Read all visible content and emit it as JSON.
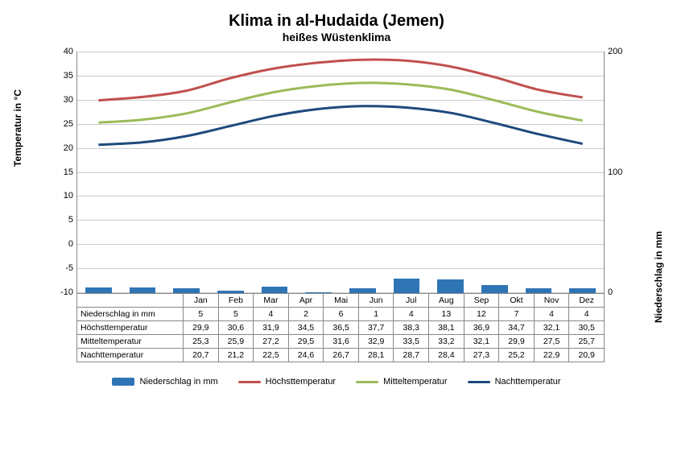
{
  "title": "Klima in al-Hudaida (Jemen)",
  "subtitle": "heißes Wüstenklima",
  "yLeftLabel": "Temperatur in °C",
  "yRightLabel": "Niederschlag in mm",
  "chart": {
    "type": "combo-bar-line",
    "months": [
      "Jan",
      "Feb",
      "Mar",
      "Apr",
      "Mai",
      "Jun",
      "Jul",
      "Aug",
      "Sep",
      "Okt",
      "Nov",
      "Dez"
    ],
    "yLeft": {
      "min": -10,
      "max": 40,
      "step": 5
    },
    "yRight": {
      "ticks": [
        0,
        100,
        200
      ]
    },
    "bar_color": "#2f75b5",
    "line_colors": {
      "hoch": "#c0504d",
      "mittel": "#9bbb59",
      "nacht": "#1f497d"
    },
    "line_width": 3,
    "grid_color": "#cccccc",
    "series": {
      "niederschlag": [
        5,
        5,
        4,
        2,
        6,
        1,
        4,
        13,
        12,
        7,
        4,
        4
      ],
      "hoch": [
        29.9,
        30.6,
        31.9,
        34.5,
        36.5,
        37.7,
        38.3,
        38.1,
        36.9,
        34.7,
        32.1,
        30.5
      ],
      "mittel": [
        25.3,
        25.9,
        27.2,
        29.5,
        31.6,
        32.9,
        33.5,
        33.2,
        32.1,
        29.9,
        27.5,
        25.7
      ],
      "nacht": [
        20.7,
        21.2,
        22.5,
        24.6,
        26.7,
        28.1,
        28.7,
        28.4,
        27.3,
        25.2,
        22.9,
        20.9
      ]
    }
  },
  "tableRows": [
    {
      "label": "Niederschlag in mm",
      "vals": [
        "5",
        "5",
        "4",
        "2",
        "6",
        "1",
        "4",
        "13",
        "12",
        "7",
        "4",
        "4"
      ]
    },
    {
      "label": "Höchsttemperatur",
      "vals": [
        "29,9",
        "30,6",
        "31,9",
        "34,5",
        "36,5",
        "37,7",
        "38,3",
        "38,1",
        "36,9",
        "34,7",
        "32,1",
        "30,5"
      ]
    },
    {
      "label": "Mitteltemperatur",
      "vals": [
        "25,3",
        "25,9",
        "27,2",
        "29,5",
        "31,6",
        "32,9",
        "33,5",
        "33,2",
        "32,1",
        "29,9",
        "27,5",
        "25,7"
      ]
    },
    {
      "label": "Nachttemperatur",
      "vals": [
        "20,7",
        "21,2",
        "22,5",
        "24,6",
        "26,7",
        "28,1",
        "28,7",
        "28,4",
        "27,3",
        "25,2",
        "22,9",
        "20,9"
      ]
    }
  ],
  "legend": [
    {
      "label": "Niederschlag in mm",
      "type": "bar",
      "color": "#2f75b5"
    },
    {
      "label": "Höchsttemperatur",
      "type": "line",
      "color": "#c0504d"
    },
    {
      "label": "Mitteltemperatur",
      "type": "line",
      "color": "#9bbb59"
    },
    {
      "label": "Nachttemperatur",
      "type": "line",
      "color": "#1f497d"
    }
  ]
}
